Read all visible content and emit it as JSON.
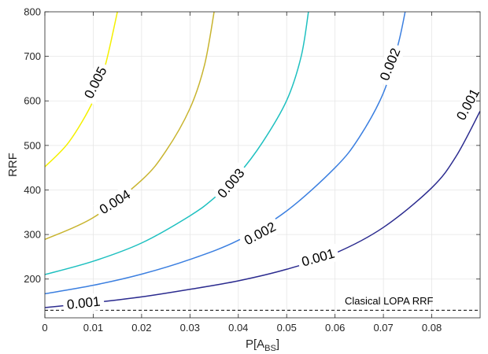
{
  "chart_data": {
    "type": "line",
    "subtype": "contour",
    "title": "",
    "xlabel_main": "P[A",
    "xlabel_sub": "BS",
    "xlabel_close": "]",
    "ylabel": "RRF",
    "xlim": [
      0,
      0.09
    ],
    "ylim": [
      113,
      800
    ],
    "xticks": [
      0,
      0.01,
      0.02,
      0.03,
      0.04,
      0.05,
      0.06,
      0.07,
      0.08
    ],
    "xtick_labels": [
      "0",
      "0.01",
      "0.02",
      "0.03",
      "0.04",
      "0.05",
      "0.06",
      "0.07",
      "0.08"
    ],
    "yticks": [
      200,
      300,
      400,
      500,
      600,
      700,
      800
    ],
    "ytick_labels": [
      "200",
      "300",
      "400",
      "500",
      "600",
      "700",
      "800"
    ],
    "grid": true,
    "series": [
      {
        "level": "0.001",
        "color": "#2b2b8f",
        "points": [
          [
            0,
            136
          ],
          [
            0.01,
            147
          ],
          [
            0.02,
            160
          ],
          [
            0.03,
            177
          ],
          [
            0.04,
            196
          ],
          [
            0.05,
            222
          ],
          [
            0.06,
            258
          ],
          [
            0.07,
            316
          ],
          [
            0.08,
            405
          ],
          [
            0.085,
            475
          ],
          [
            0.09,
            577
          ]
        ],
        "labels": [
          {
            "text": "0.001",
            "x": 0.008,
            "y": 146,
            "angle": -6
          },
          {
            "text": "0.001",
            "x": 0.0565,
            "y": 248,
            "angle": -16
          },
          {
            "text": "0.001",
            "x": 0.0875,
            "y": 592,
            "angle": -62
          }
        ]
      },
      {
        "level": "0.002",
        "color": "#3b7fe0",
        "points": [
          [
            0,
            167
          ],
          [
            0.01,
            186
          ],
          [
            0.02,
            211
          ],
          [
            0.03,
            244
          ],
          [
            0.04,
            287
          ],
          [
            0.05,
            353
          ],
          [
            0.06,
            450
          ],
          [
            0.065,
            518
          ],
          [
            0.07,
            618
          ],
          [
            0.073,
            725
          ],
          [
            0.0745,
            800
          ]
        ],
        "labels": [
          {
            "text": "0.002",
            "x": 0.0445,
            "y": 302,
            "angle": -28
          },
          {
            "text": "0.002",
            "x": 0.0714,
            "y": 682,
            "angle": -68
          }
        ]
      },
      {
        "level": "0.003",
        "color": "#1ec0c0",
        "points": [
          [
            0,
            210
          ],
          [
            0.01,
            240
          ],
          [
            0.02,
            281
          ],
          [
            0.03,
            342
          ],
          [
            0.035,
            382
          ],
          [
            0.04,
            435
          ],
          [
            0.045,
            507
          ],
          [
            0.05,
            601
          ],
          [
            0.053,
            700
          ],
          [
            0.0545,
            800
          ]
        ],
        "labels": [
          {
            "text": "0.003",
            "x": 0.0385,
            "y": 415,
            "angle": -50
          }
        ]
      },
      {
        "level": "0.004",
        "color": "#c8b42e",
        "points": [
          [
            0,
            289
          ],
          [
            0.01,
            338
          ],
          [
            0.02,
            422
          ],
          [
            0.025,
            487
          ],
          [
            0.03,
            583
          ],
          [
            0.033,
            680
          ],
          [
            0.035,
            800
          ]
        ],
        "labels": [
          {
            "text": "0.004",
            "x": 0.0145,
            "y": 373,
            "angle": -32
          }
        ]
      },
      {
        "level": "0.005",
        "color": "#f4f000",
        "points": [
          [
            0,
            452
          ],
          [
            0.005,
            508
          ],
          [
            0.01,
            600
          ],
          [
            0.0125,
            680
          ],
          [
            0.015,
            800
          ]
        ],
        "labels": [
          {
            "text": "0.005",
            "x": 0.0105,
            "y": 641,
            "angle": -63
          }
        ]
      }
    ],
    "reference_line": {
      "value": 130,
      "style": "dashed",
      "color": "#000000",
      "annotation": "Clasical LOPA RRF",
      "annotation_x": 0.062,
      "annotation_y": 143
    }
  }
}
